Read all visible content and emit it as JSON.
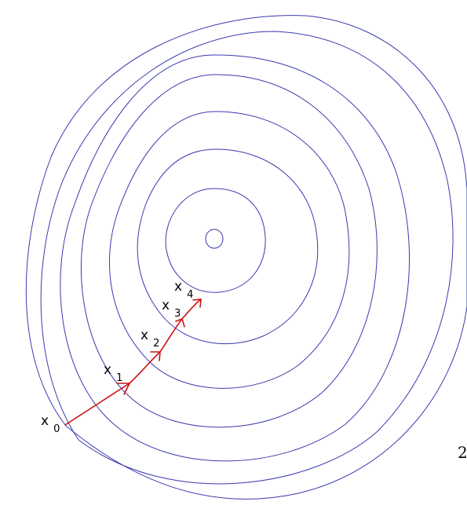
{
  "colors": {
    "contour": "#3a3ab0",
    "path": "#cc1111",
    "label": "#000000"
  },
  "contours": {
    "count": 8,
    "shape": "nested closed level curves around a single minimum"
  },
  "iterates": [
    {
      "name": "x",
      "subscript": "0"
    },
    {
      "name": "x",
      "subscript": "1"
    },
    {
      "name": "x",
      "subscript": "2"
    },
    {
      "name": "x",
      "subscript": "3"
    },
    {
      "name": "x",
      "subscript": "4"
    }
  ],
  "edge_fragment": "2"
}
